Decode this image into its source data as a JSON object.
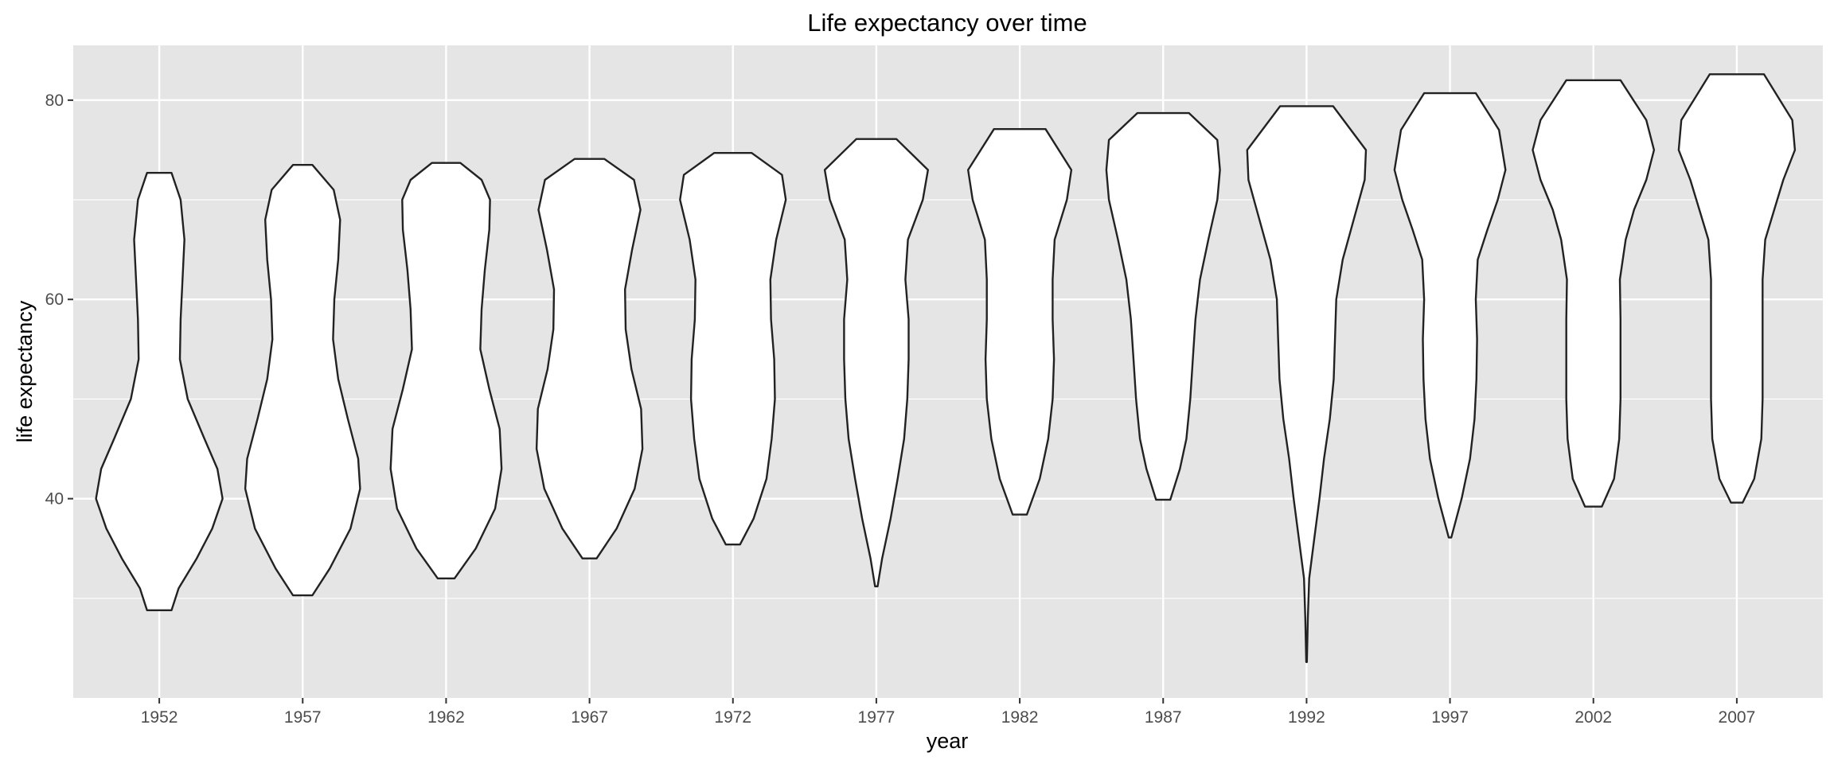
{
  "chart_data": {
    "type": "violin",
    "title": "Life expectancy over time",
    "xlabel": "year",
    "ylabel": "life expectancy",
    "categories": [
      "1952",
      "1957",
      "1962",
      "1967",
      "1972",
      "1977",
      "1982",
      "1987",
      "1992",
      "1997",
      "2002",
      "2007"
    ],
    "ylim": [
      20,
      85.5
    ],
    "yticks": [
      40,
      60,
      80
    ],
    "grid": true,
    "colors": {
      "panel": "#e5e5e5",
      "grid": "#ffffff",
      "violin_fill": "#ffffff",
      "violin_stroke": "#222222",
      "tick_text": "#4d4d4d"
    },
    "violins": [
      {
        "year": "1952",
        "range": [
          28.8,
          72.7
        ],
        "profile": [
          [
            28.8,
            0.19
          ],
          [
            31,
            0.3
          ],
          [
            34,
            0.58
          ],
          [
            37,
            0.82
          ],
          [
            40,
            0.98
          ],
          [
            43,
            0.9
          ],
          [
            46,
            0.7
          ],
          [
            50,
            0.44
          ],
          [
            54,
            0.32
          ],
          [
            58,
            0.33
          ],
          [
            62,
            0.36
          ],
          [
            66,
            0.39
          ],
          [
            70,
            0.33
          ],
          [
            72.7,
            0.19
          ]
        ]
      },
      {
        "year": "1957",
        "range": [
          30.3,
          73.5
        ],
        "profile": [
          [
            30.3,
            0.15
          ],
          [
            33,
            0.42
          ],
          [
            37,
            0.74
          ],
          [
            41,
            0.89
          ],
          [
            44,
            0.86
          ],
          [
            48,
            0.7
          ],
          [
            52,
            0.55
          ],
          [
            56,
            0.47
          ],
          [
            60,
            0.49
          ],
          [
            64,
            0.55
          ],
          [
            68,
            0.58
          ],
          [
            71,
            0.48
          ],
          [
            73.5,
            0.15
          ]
        ]
      },
      {
        "year": "1962",
        "range": [
          32.0,
          73.7
        ],
        "profile": [
          [
            32,
            0.13
          ],
          [
            35,
            0.46
          ],
          [
            39,
            0.76
          ],
          [
            43,
            0.86
          ],
          [
            47,
            0.83
          ],
          [
            51,
            0.67
          ],
          [
            55,
            0.53
          ],
          [
            59,
            0.55
          ],
          [
            63,
            0.6
          ],
          [
            67,
            0.67
          ],
          [
            70,
            0.68
          ],
          [
            72,
            0.55
          ],
          [
            73.7,
            0.22
          ]
        ]
      },
      {
        "year": "1967",
        "range": [
          34.0,
          74.1
        ],
        "profile": [
          [
            34,
            0.11
          ],
          [
            37,
            0.42
          ],
          [
            41,
            0.7
          ],
          [
            45,
            0.82
          ],
          [
            49,
            0.8
          ],
          [
            53,
            0.65
          ],
          [
            57,
            0.56
          ],
          [
            61,
            0.55
          ],
          [
            65,
            0.66
          ],
          [
            69,
            0.79
          ],
          [
            72,
            0.69
          ],
          [
            74.1,
            0.23
          ]
        ]
      },
      {
        "year": "1972",
        "range": [
          35.4,
          74.7
        ],
        "profile": [
          [
            35.4,
            0.11
          ],
          [
            38,
            0.32
          ],
          [
            42,
            0.52
          ],
          [
            46,
            0.6
          ],
          [
            50,
            0.65
          ],
          [
            54,
            0.64
          ],
          [
            58,
            0.59
          ],
          [
            62,
            0.58
          ],
          [
            66,
            0.67
          ],
          [
            70,
            0.82
          ],
          [
            72.5,
            0.76
          ],
          [
            74.7,
            0.29
          ]
        ]
      },
      {
        "year": "1977",
        "range": [
          31.2,
          76.1
        ],
        "profile": [
          [
            31.2,
            0.02
          ],
          [
            34,
            0.09
          ],
          [
            38,
            0.22
          ],
          [
            42,
            0.33
          ],
          [
            46,
            0.43
          ],
          [
            50,
            0.48
          ],
          [
            54,
            0.5
          ],
          [
            58,
            0.5
          ],
          [
            62,
            0.45
          ],
          [
            66,
            0.49
          ],
          [
            70,
            0.72
          ],
          [
            73,
            0.8
          ],
          [
            76.1,
            0.31
          ]
        ]
      },
      {
        "year": "1982",
        "range": [
          38.4,
          77.1
        ],
        "profile": [
          [
            38.4,
            0.11
          ],
          [
            42,
            0.31
          ],
          [
            46,
            0.44
          ],
          [
            50,
            0.51
          ],
          [
            54,
            0.53
          ],
          [
            58,
            0.51
          ],
          [
            62,
            0.51
          ],
          [
            66,
            0.54
          ],
          [
            70,
            0.73
          ],
          [
            73,
            0.8
          ],
          [
            77.1,
            0.4
          ]
        ]
      },
      {
        "year": "1987",
        "range": [
          39.9,
          78.7
        ],
        "profile": [
          [
            39.9,
            0.11
          ],
          [
            43,
            0.26
          ],
          [
            46,
            0.36
          ],
          [
            50,
            0.42
          ],
          [
            54,
            0.46
          ],
          [
            58,
            0.5
          ],
          [
            62,
            0.57
          ],
          [
            66,
            0.7
          ],
          [
            70,
            0.84
          ],
          [
            73,
            0.88
          ],
          [
            76,
            0.84
          ],
          [
            78.7,
            0.4
          ]
        ]
      },
      {
        "year": "1992",
        "range": [
          23.6,
          79.4
        ],
        "profile": [
          [
            23.6,
            0.005
          ],
          [
            28,
            0.02
          ],
          [
            32,
            0.04
          ],
          [
            36,
            0.12
          ],
          [
            40,
            0.2
          ],
          [
            44,
            0.27
          ],
          [
            48,
            0.36
          ],
          [
            52,
            0.42
          ],
          [
            56,
            0.44
          ],
          [
            60,
            0.46
          ],
          [
            64,
            0.56
          ],
          [
            68,
            0.73
          ],
          [
            72,
            0.9
          ],
          [
            75,
            0.92
          ],
          [
            79.4,
            0.41
          ]
        ]
      },
      {
        "year": "1997",
        "range": [
          36.1,
          80.7
        ],
        "profile": [
          [
            36.1,
            0.02
          ],
          [
            40,
            0.18
          ],
          [
            44,
            0.31
          ],
          [
            48,
            0.38
          ],
          [
            52,
            0.41
          ],
          [
            56,
            0.42
          ],
          [
            60,
            0.4
          ],
          [
            64,
            0.43
          ],
          [
            67,
            0.58
          ],
          [
            70,
            0.74
          ],
          [
            73,
            0.86
          ],
          [
            77,
            0.76
          ],
          [
            80.7,
            0.4
          ]
        ]
      },
      {
        "year": "2002",
        "range": [
          39.2,
          82.0
        ],
        "profile": [
          [
            39.2,
            0.13
          ],
          [
            42,
            0.32
          ],
          [
            46,
            0.4
          ],
          [
            50,
            0.42
          ],
          [
            54,
            0.42
          ],
          [
            58,
            0.42
          ],
          [
            62,
            0.41
          ],
          [
            66,
            0.5
          ],
          [
            69,
            0.63
          ],
          [
            72,
            0.82
          ],
          [
            75,
            0.94
          ],
          [
            78,
            0.82
          ],
          [
            82,
            0.42
          ]
        ]
      },
      {
        "year": "2007",
        "range": [
          39.6,
          82.6
        ],
        "profile": [
          [
            39.6,
            0.09
          ],
          [
            42,
            0.27
          ],
          [
            46,
            0.38
          ],
          [
            50,
            0.4
          ],
          [
            54,
            0.4
          ],
          [
            58,
            0.4
          ],
          [
            62,
            0.4
          ],
          [
            66,
            0.44
          ],
          [
            69,
            0.58
          ],
          [
            72,
            0.72
          ],
          [
            75,
            0.9
          ],
          [
            78,
            0.86
          ],
          [
            82.6,
            0.42
          ]
        ]
      }
    ]
  }
}
